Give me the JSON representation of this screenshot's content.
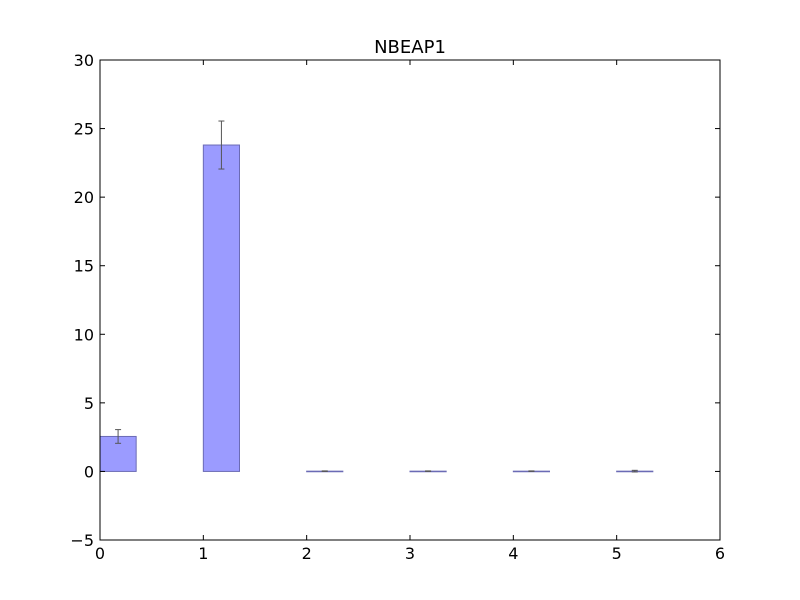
{
  "chart_data": {
    "type": "bar",
    "title": "NBEAP1",
    "xlabel": "",
    "ylabel": "",
    "xlim": [
      0,
      6
    ],
    "ylim": [
      -5,
      30
    ],
    "x_ticks": [
      0,
      1,
      2,
      3,
      4,
      5,
      6
    ],
    "y_ticks": [
      -5,
      0,
      5,
      10,
      15,
      20,
      25,
      30
    ],
    "x_tick_labels": [
      "0",
      "1",
      "2",
      "3",
      "4",
      "5",
      "6"
    ],
    "y_tick_labels": [
      "−5",
      "0",
      "5",
      "10",
      "15",
      "20",
      "25",
      "30"
    ],
    "bar_width": 0.35,
    "bars": [
      {
        "x": 0,
        "value": 2.55,
        "error": 0.5
      },
      {
        "x": 1,
        "value": 23.8,
        "error": 1.75
      },
      {
        "x": 2,
        "value": 0.02,
        "error": 0.02
      },
      {
        "x": 3,
        "value": 0.02,
        "error": 0.02
      },
      {
        "x": 4,
        "value": 0.02,
        "error": 0.02
      },
      {
        "x": 5,
        "value": 0.02,
        "error": 0.06
      }
    ],
    "grid": false,
    "colors": {
      "bar_fill": "#9b9bff",
      "bar_edge": "#6b6bb5",
      "error_bar": "#555555",
      "axes": "#000000"
    }
  }
}
